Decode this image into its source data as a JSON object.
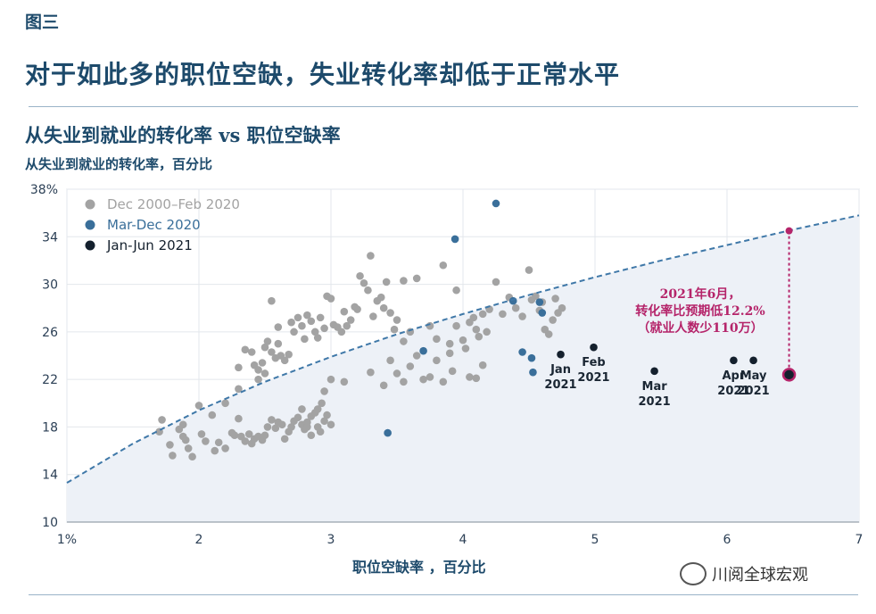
{
  "figure_label": "图三",
  "headline": "对于如此多的职位空缺，失业转化率却低于正常水平",
  "watermark": "川阅全球宏观",
  "chart_data": {
    "type": "scatter",
    "title": "从失业到就业的转化率 vs 职位空缺率",
    "ylabel": "从失业到就业的转化率，百分比",
    "xlabel": "职位空缺率 ，百分比",
    "xlim": [
      1,
      7
    ],
    "ylim": [
      10,
      38
    ],
    "x_ticks": [
      1,
      2,
      3,
      4,
      5,
      6,
      7
    ],
    "x_tick_labels": [
      "1%",
      "2",
      "3",
      "4",
      "5",
      "6",
      "7"
    ],
    "y_ticks": [
      10,
      14,
      18,
      22,
      26,
      30,
      34,
      38
    ],
    "y_tick_labels": [
      "10",
      "14",
      "18",
      "22",
      "26",
      "30",
      "34",
      "38%"
    ],
    "grid": true,
    "legend_position": "top-left",
    "colors": {
      "pre": "#a3a3a3",
      "covid": "#3a6f9a",
      "recent": "#14202d",
      "annotation": "#b5246a",
      "curve": "#3f78a8",
      "fill": "#edf1f7"
    },
    "curve": {
      "name": "",
      "x": [
        1,
        1.5,
        2,
        2.5,
        3,
        3.5,
        4,
        4.5,
        5,
        5.5,
        6,
        6.5,
        7
      ],
      "y": [
        13.3,
        16.6,
        19.4,
        21.8,
        23.9,
        25.8,
        27.5,
        29.1,
        30.6,
        32.0,
        33.3,
        34.6,
        35.8
      ]
    },
    "series": [
      {
        "name": "Dec 2000–Feb 2020",
        "points": [
          [
            1.7,
            17.6
          ],
          [
            1.72,
            18.6
          ],
          [
            1.78,
            16.5
          ],
          [
            1.8,
            15.6
          ],
          [
            1.85,
            17.8
          ],
          [
            1.88,
            17.2
          ],
          [
            1.9,
            16.9
          ],
          [
            1.92,
            16.2
          ],
          [
            1.95,
            15.5
          ],
          [
            1.88,
            18.2
          ],
          [
            2.0,
            19.8
          ],
          [
            2.02,
            17.4
          ],
          [
            2.05,
            16.8
          ],
          [
            2.1,
            19.0
          ],
          [
            2.12,
            16.0
          ],
          [
            2.15,
            16.7
          ],
          [
            2.2,
            16.2
          ],
          [
            2.25,
            17.5
          ],
          [
            2.27,
            17.3
          ],
          [
            2.3,
            18.7
          ],
          [
            2.32,
            17.2
          ],
          [
            2.35,
            16.8
          ],
          [
            2.38,
            17.4
          ],
          [
            2.4,
            16.6
          ],
          [
            2.42,
            17.0
          ],
          [
            2.45,
            17.2
          ],
          [
            2.48,
            16.9
          ],
          [
            2.5,
            17.3
          ],
          [
            2.52,
            18.0
          ],
          [
            2.55,
            18.6
          ],
          [
            2.58,
            17.9
          ],
          [
            2.6,
            18.4
          ],
          [
            2.63,
            18.2
          ],
          [
            2.65,
            17.0
          ],
          [
            2.68,
            17.6
          ],
          [
            2.7,
            18.0
          ],
          [
            2.72,
            18.5
          ],
          [
            2.75,
            18.8
          ],
          [
            2.78,
            18.2
          ],
          [
            2.8,
            17.8
          ],
          [
            2.82,
            18.4
          ],
          [
            2.85,
            18.9
          ],
          [
            2.88,
            19.2
          ],
          [
            2.9,
            18.0
          ],
          [
            2.92,
            17.6
          ],
          [
            2.95,
            18.5
          ],
          [
            2.97,
            19.0
          ],
          [
            3.0,
            18.2
          ],
          [
            2.93,
            20.0
          ],
          [
            2.95,
            21.0
          ],
          [
            2.85,
            17.3
          ],
          [
            2.78,
            19.5
          ],
          [
            2.9,
            19.5
          ],
          [
            2.82,
            18.0
          ],
          [
            2.3,
            23.0
          ],
          [
            2.35,
            24.5
          ],
          [
            2.4,
            24.3
          ],
          [
            2.42,
            23.2
          ],
          [
            2.45,
            22.8
          ],
          [
            2.48,
            23.4
          ],
          [
            2.5,
            24.7
          ],
          [
            2.52,
            25.2
          ],
          [
            2.55,
            24.3
          ],
          [
            2.58,
            23.8
          ],
          [
            2.6,
            25.0
          ],
          [
            2.62,
            24.0
          ],
          [
            2.65,
            23.6
          ],
          [
            2.68,
            24.1
          ],
          [
            2.7,
            26.8
          ],
          [
            2.72,
            26.0
          ],
          [
            2.75,
            27.2
          ],
          [
            2.78,
            26.5
          ],
          [
            2.8,
            25.4
          ],
          [
            2.82,
            27.4
          ],
          [
            2.85,
            26.9
          ],
          [
            2.88,
            26.0
          ],
          [
            2.9,
            25.5
          ],
          [
            2.92,
            27.2
          ],
          [
            2.95,
            26.3
          ],
          [
            2.97,
            29.0
          ],
          [
            3.0,
            28.8
          ],
          [
            3.02,
            26.6
          ],
          [
            3.05,
            26.4
          ],
          [
            3.08,
            26.0
          ],
          [
            3.1,
            27.7
          ],
          [
            3.12,
            26.5
          ],
          [
            3.15,
            27.0
          ],
          [
            3.18,
            28.1
          ],
          [
            3.2,
            27.9
          ],
          [
            3.22,
            30.7
          ],
          [
            3.25,
            30.1
          ],
          [
            3.28,
            29.5
          ],
          [
            3.3,
            32.4
          ],
          [
            3.32,
            27.3
          ],
          [
            3.35,
            28.6
          ],
          [
            3.38,
            28.9
          ],
          [
            3.4,
            28.0
          ],
          [
            3.42,
            30.2
          ],
          [
            3.45,
            27.6
          ],
          [
            3.48,
            26.2
          ],
          [
            3.5,
            27.0
          ],
          [
            3.55,
            30.3
          ],
          [
            2.55,
            28.6
          ],
          [
            2.6,
            26.4
          ],
          [
            2.5,
            22.5
          ],
          [
            2.45,
            22.0
          ],
          [
            2.3,
            21.2
          ],
          [
            2.2,
            20.0
          ],
          [
            3.0,
            22.0
          ],
          [
            3.1,
            21.8
          ],
          [
            3.3,
            22.6
          ],
          [
            3.4,
            21.5
          ],
          [
            3.5,
            22.5
          ],
          [
            3.55,
            21.8
          ],
          [
            3.6,
            23.1
          ],
          [
            3.7,
            22.0
          ],
          [
            3.75,
            22.2
          ],
          [
            3.8,
            23.6
          ],
          [
            3.85,
            21.8
          ],
          [
            3.9,
            24.2
          ],
          [
            3.92,
            22.7
          ],
          [
            3.95,
            26.5
          ],
          [
            4.0,
            25.3
          ],
          [
            4.02,
            24.6
          ],
          [
            4.05,
            26.8
          ],
          [
            4.08,
            27.2
          ],
          [
            4.1,
            26.2
          ],
          [
            4.12,
            25.6
          ],
          [
            4.15,
            27.5
          ],
          [
            4.18,
            26.0
          ],
          [
            4.2,
            27.9
          ],
          [
            4.25,
            30.2
          ],
          [
            4.3,
            27.5
          ],
          [
            4.35,
            28.9
          ],
          [
            4.4,
            28.0
          ],
          [
            4.45,
            27.3
          ],
          [
            4.5,
            31.2
          ],
          [
            4.52,
            28.7
          ],
          [
            4.55,
            29.0
          ],
          [
            4.58,
            27.8
          ],
          [
            4.6,
            28.5
          ],
          [
            4.62,
            26.2
          ],
          [
            4.65,
            25.8
          ],
          [
            4.68,
            27.0
          ],
          [
            4.7,
            28.8
          ],
          [
            4.72,
            27.6
          ],
          [
            4.75,
            28.0
          ],
          [
            3.95,
            29.5
          ],
          [
            4.05,
            22.2
          ],
          [
            4.1,
            22.1
          ],
          [
            3.65,
            24.0
          ],
          [
            3.75,
            26.5
          ],
          [
            3.85,
            31.6
          ],
          [
            3.6,
            26.0
          ],
          [
            3.55,
            25.2
          ],
          [
            3.45,
            23.6
          ],
          [
            3.65,
            30.5
          ],
          [
            3.8,
            25.4
          ],
          [
            3.9,
            25.0
          ],
          [
            4.15,
            23.2
          ]
        ]
      },
      {
        "name": "Mar-Dec 2020",
        "points": [
          [
            3.43,
            17.5
          ],
          [
            3.7,
            24.4
          ],
          [
            3.94,
            33.8
          ],
          [
            4.25,
            36.8
          ],
          [
            4.38,
            28.6
          ],
          [
            4.45,
            24.3
          ],
          [
            4.52,
            23.8
          ],
          [
            4.53,
            22.6
          ],
          [
            4.58,
            28.5
          ],
          [
            4.6,
            27.6
          ]
        ]
      },
      {
        "name": "Jan-Jun 2021",
        "points": [
          [
            4.74,
            24.1
          ],
          [
            4.99,
            24.7
          ],
          [
            5.45,
            22.7
          ],
          [
            6.05,
            23.6
          ],
          [
            6.2,
            23.6
          ],
          [
            6.47,
            22.4
          ]
        ],
        "labels": [
          {
            "line1": "Jan",
            "line2": "2021"
          },
          {
            "line1": "Feb",
            "line2": "2021"
          },
          {
            "line1": "Mar",
            "line2": "2021"
          },
          {
            "line1": "Apr",
            "line2": "2021"
          },
          {
            "line1": "May",
            "line2": "2021"
          },
          {
            "line1": "",
            "line2": ""
          }
        ]
      }
    ],
    "annotation": {
      "expected": [
        6.47,
        34.5
      ],
      "actual": [
        6.47,
        22.4
      ],
      "lines": [
        "2021年6月，",
        "转化率比预期低12.2%",
        "（就业人数少110万）"
      ]
    }
  }
}
